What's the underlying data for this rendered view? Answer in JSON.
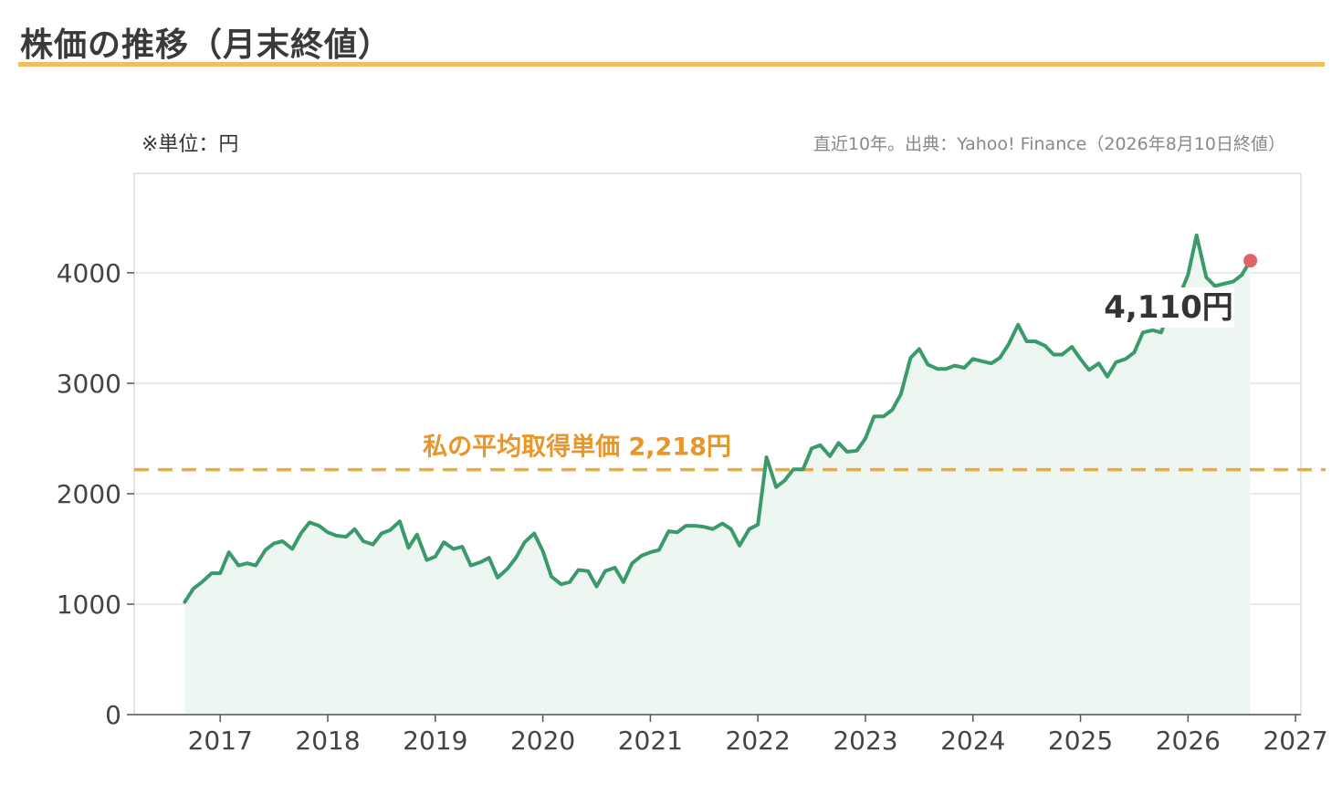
{
  "header": {
    "title": "株価の推移（月末終値）",
    "unit_note": "※単位：円",
    "source_note": "直近10年。出典：Yahoo! Finance（2026年8月10日終値）"
  },
  "colors": {
    "line": "#3a9a6a",
    "area": "#eef6f1",
    "avg_line": "#efa93a",
    "avg_text": "#e8962a",
    "endpoint": "#e0626a",
    "title_rule": "#f2bd5f"
  },
  "chart_data": {
    "type": "line",
    "title": "株価の推移（月末終値）",
    "xlabel": "",
    "ylabel": "",
    "xlim": [
      2016.2,
      2027.05
    ],
    "ylim": [
      0,
      4900
    ],
    "x_ticks": [
      2017,
      2018,
      2019,
      2020,
      2021,
      2022,
      2023,
      2024,
      2025,
      2026,
      2027
    ],
    "y_ticks": [
      0,
      1000,
      2000,
      3000,
      4000
    ],
    "grid": "horizontal",
    "area_fill": true,
    "series": [
      {
        "name": "",
        "x": [
          2016.67,
          2016.75,
          2016.83,
          2016.92,
          2017.0,
          2017.08,
          2017.17,
          2017.25,
          2017.33,
          2017.42,
          2017.5,
          2017.58,
          2017.67,
          2017.75,
          2017.83,
          2017.92,
          2018.0,
          2018.08,
          2018.17,
          2018.25,
          2018.33,
          2018.42,
          2018.5,
          2018.58,
          2018.67,
          2018.75,
          2018.83,
          2018.92,
          2019.0,
          2019.08,
          2019.17,
          2019.25,
          2019.33,
          2019.42,
          2019.5,
          2019.58,
          2019.67,
          2019.75,
          2019.83,
          2019.92,
          2020.0,
          2020.08,
          2020.17,
          2020.25,
          2020.33,
          2020.42,
          2020.5,
          2020.58,
          2020.67,
          2020.75,
          2020.83,
          2020.92,
          2021.0,
          2021.08,
          2021.17,
          2021.25,
          2021.33,
          2021.42,
          2021.5,
          2021.58,
          2021.67,
          2021.75,
          2021.83,
          2021.92,
          2022.0,
          2022.08,
          2022.17,
          2022.25,
          2022.33,
          2022.42,
          2022.5,
          2022.58,
          2022.67,
          2022.75,
          2022.83,
          2022.92,
          2023.0,
          2023.08,
          2023.17,
          2023.25,
          2023.33,
          2023.42,
          2023.5,
          2023.58,
          2023.67,
          2023.75,
          2023.83,
          2023.92,
          2024.0,
          2024.08,
          2024.17,
          2024.25,
          2024.33,
          2024.42,
          2024.5,
          2024.58,
          2024.67,
          2024.75,
          2024.83,
          2024.92,
          2025.0,
          2025.08,
          2025.17,
          2025.25,
          2025.33,
          2025.42,
          2025.5,
          2025.58,
          2025.67,
          2025.75,
          2025.83,
          2025.92,
          2026.0,
          2026.08,
          2026.17,
          2026.25,
          2026.33,
          2026.42,
          2026.5,
          2026.58
        ],
        "values": [
          1020,
          1140,
          1200,
          1280,
          1280,
          1470,
          1350,
          1370,
          1350,
          1490,
          1550,
          1570,
          1500,
          1640,
          1740,
          1710,
          1650,
          1620,
          1610,
          1680,
          1570,
          1540,
          1640,
          1670,
          1750,
          1510,
          1630,
          1400,
          1430,
          1560,
          1500,
          1520,
          1350,
          1380,
          1420,
          1240,
          1320,
          1420,
          1560,
          1640,
          1480,
          1250,
          1180,
          1200,
          1310,
          1300,
          1160,
          1300,
          1330,
          1200,
          1370,
          1440,
          1470,
          1490,
          1660,
          1650,
          1710,
          1710,
          1700,
          1680,
          1730,
          1680,
          1530,
          1680,
          1720,
          2330,
          2060,
          2120,
          2220,
          2220,
          2410,
          2440,
          2340,
          2460,
          2380,
          2390,
          2500,
          2700,
          2700,
          2760,
          2900,
          3230,
          3310,
          3170,
          3130,
          3130,
          3160,
          3140,
          3220,
          3200,
          3180,
          3230,
          3350,
          3530,
          3380,
          3380,
          3340,
          3260,
          3260,
          3330,
          3220,
          3120,
          3180,
          3060,
          3190,
          3220,
          3280,
          3460,
          3480,
          3460,
          3680,
          3790,
          3980,
          4340,
          3960,
          3880,
          3900,
          3920,
          3980,
          4110
        ]
      }
    ],
    "reference_line": {
      "label": "私の平均取得単価 2,218円",
      "value": 2218
    },
    "annotations": [
      {
        "text": "4,110円",
        "x": 2026.58,
        "y": 4110
      }
    ]
  }
}
